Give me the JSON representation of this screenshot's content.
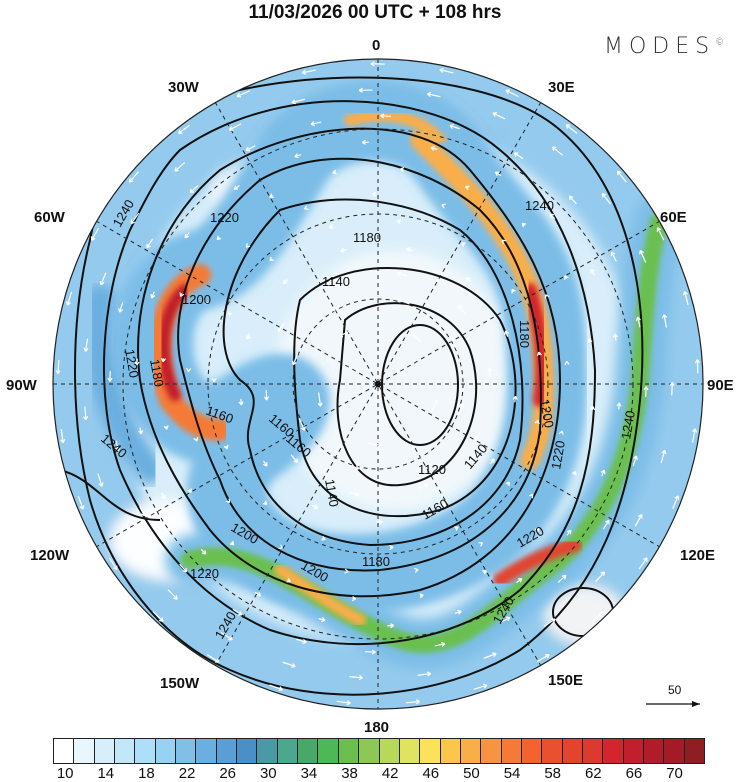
{
  "title": "11/03/2026  00 UTC  + 108 hrs",
  "logo": "MODES",
  "longitude_labels": {
    "top": "0",
    "top_right": "30E",
    "right_upper": "60E",
    "right": "90E",
    "right_lower": "120E",
    "bottom_right": "150E",
    "bottom": "180",
    "bottom_left": "150W",
    "left_lower": "120W",
    "left": "90W",
    "left_upper": "60W",
    "top_left": "30W"
  },
  "contour_labels": [
    "1240",
    "1220",
    "1180",
    "1200",
    "1140",
    "1180",
    "1220",
    "1180",
    "1160",
    "1160",
    "1160",
    "1140",
    "1120",
    "1140",
    "1160",
    "1180",
    "1200",
    "1200",
    "1220",
    "1220",
    "1240",
    "1240",
    "1240",
    "1180",
    "1200",
    "1220",
    "1240"
  ],
  "reference_vector": "50",
  "colorbar": {
    "labels": [
      "10",
      "14",
      "18",
      "22",
      "26",
      "30",
      "34",
      "38",
      "42",
      "46",
      "50",
      "54",
      "58",
      "62",
      "66",
      "70"
    ],
    "colors": [
      "#ffffff",
      "#eaf6fd",
      "#d6effb",
      "#c2e7f9",
      "#ade0f8",
      "#96d2f1",
      "#80c0e8",
      "#6bafe0",
      "#5b9ed6",
      "#4a8fc6",
      "#4a9aa6",
      "#4ba88e",
      "#47a86a",
      "#4db856",
      "#6bbf4f",
      "#8cc853",
      "#b8d85a",
      "#e0e35f",
      "#fbe25a",
      "#fcc64d",
      "#f9ae48",
      "#f59541",
      "#f47a35",
      "#f2632f",
      "#e9502d",
      "#e2442d",
      "#dc3a2f",
      "#d3262c",
      "#c01f2b",
      "#b01c28",
      "#a21b26",
      "#8f1d22"
    ]
  }
}
